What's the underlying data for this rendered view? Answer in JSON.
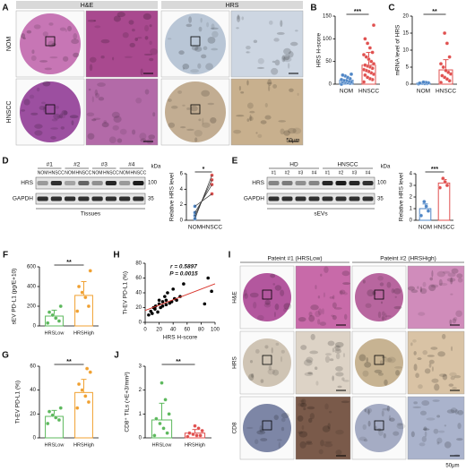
{
  "figure": {
    "panel_a": {
      "label": "A",
      "headers": [
        "H&E",
        "HRS"
      ],
      "rows": [
        "NOM",
        "HNSCC"
      ],
      "scale": "50μm"
    },
    "panel_d": {
      "label": "D",
      "groups": [
        "#1",
        "#2",
        "#3",
        "#4"
      ],
      "lanes": [
        "NOM",
        "HNSCC",
        "NOM",
        "HNSCC",
        "NOM",
        "HNSCC",
        "NOM",
        "HNSCC"
      ],
      "rows": [
        "HRS",
        "GAPDH"
      ],
      "kda_title": "kDa",
      "kda": [
        "100",
        "35"
      ],
      "sample": "Tissues"
    },
    "panel_e": {
      "label": "E",
      "groups": [
        "HD",
        "HNSCC"
      ],
      "lanes": [
        "#1",
        "#2",
        "#3",
        "#4",
        "#1",
        "#2",
        "#3",
        "#4"
      ],
      "rows": [
        "HRS",
        "GAPDH"
      ],
      "kda_title": "kDa",
      "kda": [
        "100",
        "35"
      ],
      "sample": "sEVs"
    },
    "panel_i": {
      "label": "I",
      "headers": [
        "Pateint #1 (HRSLow)",
        "Pateint #2 (HRSHigh)"
      ],
      "rows": [
        "H&E",
        "HRS",
        "CD8"
      ],
      "scale": "50μm"
    }
  },
  "chart_data": [
    {
      "type": "dot-bar",
      "label": "B",
      "ylabel": "HRS H-score",
      "categories": [
        "NOM",
        "HNSCC"
      ],
      "colors": [
        "#4f86c6",
        "#e0504f"
      ],
      "values": [
        9,
        42
      ],
      "errors": [
        7,
        28
      ],
      "points": [
        [
          0,
          2,
          3,
          4,
          5,
          5,
          6,
          8,
          8,
          10,
          12,
          15,
          18,
          20,
          22
        ],
        [
          5,
          10,
          12,
          15,
          20,
          22,
          25,
          28,
          30,
          32,
          35,
          38,
          40,
          42,
          45,
          50,
          55,
          60,
          65,
          70,
          80,
          90,
          100,
          130
        ]
      ],
      "ylim": [
        0,
        150
      ],
      "yticks": [
        0,
        50,
        100,
        150
      ],
      "significance": "***"
    },
    {
      "type": "dot-bar",
      "label": "C",
      "ylabel": "mRNA level of HRS",
      "categories": [
        "NOM",
        "HNSCC"
      ],
      "colors": [
        "#4f86c6",
        "#e0504f"
      ],
      "values": [
        0.3,
        4.2
      ],
      "errors": [
        0.2,
        3
      ],
      "points": [
        [
          0.1,
          0.2,
          0.2,
          0.3,
          0.3,
          0.4,
          0.5,
          0.6
        ],
        [
          0.5,
          1,
          1.5,
          2,
          2.5,
          3,
          3.5,
          4,
          5,
          6,
          8,
          12,
          15
        ]
      ],
      "ylim": [
        0,
        20
      ],
      "yticks": [
        0,
        5,
        10,
        15,
        20
      ],
      "significance": "**"
    },
    {
      "type": "paired",
      "ylabel": "Relative HRS level",
      "categories": [
        "NOM",
        "HNSCC"
      ],
      "colors": [
        "#4f86c6",
        "#e0504f"
      ],
      "points": [
        [
          0.2,
          0.6,
          1.0,
          1.8
        ],
        [
          5.8,
          5.2,
          4.6,
          3.4
        ]
      ],
      "ylim": [
        0,
        6
      ],
      "yticks": [
        0,
        2,
        4,
        6
      ],
      "significance": "*"
    },
    {
      "type": "dot-bar",
      "ylabel": "Relative HRS level",
      "categories": [
        "NOM",
        "HNSCC"
      ],
      "colors": [
        "#4f86c6",
        "#e0504f"
      ],
      "values": [
        1.0,
        3.2
      ],
      "errors": [
        0.4,
        0.3
      ],
      "points": [
        [
          0.4,
          0.8,
          1.2,
          1.6
        ],
        [
          2.8,
          3.0,
          3.3,
          3.6
        ]
      ],
      "ylim": [
        0,
        4
      ],
      "yticks": [
        0,
        1,
        2,
        3,
        4
      ],
      "significance": "***"
    },
    {
      "type": "dot-bar",
      "label": "F",
      "ylabel": "sEV PD-L1 (pg/E+10)",
      "categories": [
        "HRSLow",
        "HRSHigh"
      ],
      "colors": [
        "#5cb85c",
        "#f0a030"
      ],
      "values": [
        100,
        310
      ],
      "errors": [
        60,
        140
      ],
      "points": [
        [
          30,
          50,
          80,
          110,
          140,
          200
        ],
        [
          150,
          200,
          290,
          340,
          400,
          560
        ]
      ],
      "ylim": [
        0,
        600
      ],
      "yticks": [
        0,
        200,
        400,
        600
      ],
      "significance": "**"
    },
    {
      "type": "scatter",
      "label": "H",
      "xlabel": "HRS H-score",
      "ylabel": "Ti-EV PD-L1 (%)",
      "color": "#000000",
      "fit_color": "#d9342b",
      "x": [
        5,
        8,
        10,
        12,
        14,
        15,
        18,
        20,
        20,
        22,
        25,
        25,
        28,
        30,
        30,
        32,
        35,
        38,
        40,
        42,
        45,
        50,
        55,
        85,
        90,
        95
      ],
      "y": [
        10,
        15,
        12,
        20,
        18,
        22,
        14,
        25,
        30,
        20,
        22,
        28,
        35,
        24,
        30,
        40,
        26,
        28,
        45,
        32,
        30,
        35,
        52,
        25,
        60,
        42
      ],
      "xlim": [
        0,
        100
      ],
      "xticks": [
        0,
        20,
        40,
        60,
        80,
        100
      ],
      "ylim": [
        0,
        80
      ],
      "yticks": [
        0,
        20,
        40,
        60,
        80
      ],
      "annotations": [
        "r = 0.5897",
        "P = 0.0015"
      ]
    },
    {
      "type": "dot-bar",
      "label": "G",
      "ylabel": "Ti-EV PD-L1 (%)",
      "categories": [
        "HRSLow",
        "HRSHigh"
      ],
      "colors": [
        "#5cb85c",
        "#f0a030"
      ],
      "values": [
        18,
        38
      ],
      "errors": [
        5,
        11
      ],
      "points": [
        [
          12,
          15,
          17,
          19,
          22,
          25
        ],
        [
          25,
          30,
          35,
          40,
          45,
          55,
          58
        ]
      ],
      "ylim": [
        0,
        60
      ],
      "yticks": [
        0,
        20,
        40,
        60
      ],
      "significance": "**"
    },
    {
      "type": "dot-bar",
      "label": "J",
      "ylabel": "CD8⁺ TILs (×E+3/mm²)",
      "categories": [
        "HRSLow",
        "HRSHigh"
      ],
      "colors": [
        "#5cb85c",
        "#e0504f"
      ],
      "values": [
        0.75,
        0.2
      ],
      "errors": [
        0.7,
        0.15
      ],
      "points": [
        [
          0.1,
          0.2,
          0.4,
          0.6,
          0.8,
          1.0,
          1.6,
          2.3
        ],
        [
          0.05,
          0.1,
          0.1,
          0.15,
          0.2,
          0.3,
          0.4,
          0.5
        ]
      ],
      "ylim": [
        0,
        3
      ],
      "yticks": [
        0,
        1,
        2,
        3
      ],
      "significance": "**"
    }
  ]
}
